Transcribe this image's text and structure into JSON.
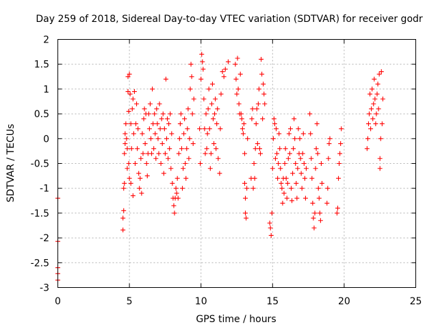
{
  "chart_data": {
    "type": "scatter",
    "title": "Day 259 of 2018, Sidereal Day-to-day VTEC variation (SDTVAR) for receiver godr",
    "xlabel": "GPS time / hours",
    "ylabel": "SDTVAR / TECUs",
    "xlim": [
      0,
      25
    ],
    "ylim": [
      -3,
      2
    ],
    "xticks": [
      0,
      5,
      10,
      15,
      20,
      25
    ],
    "yticks": [
      -3,
      -2.5,
      -2,
      -1.5,
      -1,
      -0.5,
      0,
      0.5,
      1,
      1.5,
      2
    ],
    "xtick_labels": [
      "0",
      "5",
      "10",
      "15",
      "20",
      "25"
    ],
    "ytick_labels": [
      "-3",
      "-2.5",
      "-2",
      "-1.5",
      "-1",
      "-0.5",
      "0",
      "0.5",
      "1",
      "1.5",
      "2"
    ],
    "grid": true,
    "marker": "plus",
    "series": [
      {
        "name": "SDTVAR",
        "color": "#ff0000",
        "points": [
          [
            0.0,
            -1.2
          ],
          [
            0.0,
            -2.07
          ],
          [
            0.0,
            -2.6
          ],
          [
            0.0,
            -2.72
          ],
          [
            0.0,
            -2.85
          ],
          [
            4.55,
            -1.84
          ],
          [
            4.55,
            -1.6
          ],
          [
            4.6,
            -1.45
          ],
          [
            4.6,
            -1.0
          ],
          [
            4.65,
            -0.9
          ],
          [
            4.65,
            -0.3
          ],
          [
            4.7,
            -0.1
          ],
          [
            4.7,
            0.1
          ],
          [
            4.75,
            0.3
          ],
          [
            4.8,
            0.0
          ],
          [
            4.85,
            -0.2
          ],
          [
            4.85,
            -0.6
          ],
          [
            4.9,
            1.25
          ],
          [
            4.9,
            0.95
          ],
          [
            4.95,
            0.55
          ],
          [
            4.95,
            -0.5
          ],
          [
            5.0,
            -0.8
          ],
          [
            5.0,
            1.3
          ],
          [
            5.05,
            0.9
          ],
          [
            5.1,
            0.3
          ],
          [
            5.1,
            -0.9
          ],
          [
            5.15,
            -0.2
          ],
          [
            5.2,
            0.6
          ],
          [
            5.25,
            0.8
          ],
          [
            5.25,
            -1.15
          ],
          [
            5.3,
            0.1
          ],
          [
            5.35,
            0.95
          ],
          [
            5.4,
            -0.5
          ],
          [
            5.45,
            0.3
          ],
          [
            5.5,
            0.7
          ],
          [
            5.55,
            -0.2
          ],
          [
            5.6,
            0.2
          ],
          [
            5.65,
            -0.7
          ],
          [
            5.7,
            -1.0
          ],
          [
            5.75,
            -0.8
          ],
          [
            5.8,
            -0.4
          ],
          [
            5.85,
            -1.1
          ],
          [
            5.9,
            0.1
          ],
          [
            5.95,
            -0.3
          ],
          [
            6.0,
            0.4
          ],
          [
            6.05,
            0.6
          ],
          [
            6.1,
            -0.1
          ],
          [
            6.15,
            0.5
          ],
          [
            6.2,
            -0.5
          ],
          [
            6.25,
            -0.75
          ],
          [
            6.3,
            -0.3
          ],
          [
            6.35,
            0.5
          ],
          [
            6.4,
            0.2
          ],
          [
            6.45,
            0.7
          ],
          [
            6.5,
            0.0
          ],
          [
            6.55,
            -0.3
          ],
          [
            6.6,
            1.0
          ],
          [
            6.65,
            0.3
          ],
          [
            6.7,
            -0.2
          ],
          [
            6.75,
            0.5
          ],
          [
            6.8,
            0.1
          ],
          [
            6.85,
            -0.4
          ],
          [
            6.9,
            0.6
          ],
          [
            6.95,
            0.3
          ],
          [
            7.0,
            0.0
          ],
          [
            7.05,
            -0.3
          ],
          [
            7.1,
            0.7
          ],
          [
            7.15,
            0.2
          ],
          [
            7.2,
            -0.5
          ],
          [
            7.25,
            0.4
          ],
          [
            7.3,
            -0.1
          ],
          [
            7.35,
            0.5
          ],
          [
            7.4,
            -0.7
          ],
          [
            7.45,
            0.2
          ],
          [
            7.5,
            -0.3
          ],
          [
            7.55,
            1.2
          ],
          [
            7.6,
            0.0
          ],
          [
            7.65,
            0.4
          ],
          [
            7.7,
            -0.4
          ],
          [
            7.75,
            0.3
          ],
          [
            7.8,
            -0.2
          ],
          [
            7.85,
            0.5
          ],
          [
            7.9,
            -0.6
          ],
          [
            7.95,
            0.1
          ],
          [
            8.0,
            -0.9
          ],
          [
            8.05,
            -1.2
          ],
          [
            8.1,
            -1.35
          ],
          [
            8.15,
            -1.5
          ],
          [
            8.2,
            -1.2
          ],
          [
            8.25,
            -1.0
          ],
          [
            8.3,
            -1.1
          ],
          [
            8.35,
            -0.8
          ],
          [
            8.4,
            -1.2
          ],
          [
            8.45,
            -0.3
          ],
          [
            8.5,
            0.0
          ],
          [
            8.55,
            0.3
          ],
          [
            8.6,
            0.5
          ],
          [
            8.65,
            -0.2
          ],
          [
            8.7,
            -1.0
          ],
          [
            8.75,
            -0.6
          ],
          [
            8.8,
            0.1
          ],
          [
            8.85,
            0.4
          ],
          [
            8.9,
            -0.5
          ],
          [
            8.95,
            -0.8
          ],
          [
            9.0,
            -0.2
          ],
          [
            9.05,
            0.2
          ],
          [
            9.1,
            0.6
          ],
          [
            9.15,
            -0.4
          ],
          [
            9.2,
            0.0
          ],
          [
            9.25,
            1.0
          ],
          [
            9.3,
            1.5
          ],
          [
            9.35,
            1.25
          ],
          [
            9.4,
            0.5
          ],
          [
            9.45,
            -0.1
          ],
          [
            9.5,
            0.8
          ],
          [
            9.9,
            0.2
          ],
          [
            9.95,
            -0.5
          ],
          [
            10.0,
            1.2
          ],
          [
            10.05,
            1.7
          ],
          [
            10.1,
            1.55
          ],
          [
            10.15,
            1.4
          ],
          [
            10.2,
            0.8
          ],
          [
            10.25,
            0.2
          ],
          [
            10.3,
            -0.3
          ],
          [
            10.35,
            0.5
          ],
          [
            10.4,
            -0.2
          ],
          [
            10.45,
            0.1
          ],
          [
            10.5,
            0.6
          ],
          [
            10.55,
            1.0
          ],
          [
            10.6,
            0.2
          ],
          [
            10.65,
            -0.6
          ],
          [
            10.7,
            -0.3
          ],
          [
            10.75,
            0.7
          ],
          [
            10.8,
            1.1
          ],
          [
            10.85,
            0.4
          ],
          [
            10.9,
            -0.1
          ],
          [
            10.95,
            0.5
          ],
          [
            11.0,
            0.8
          ],
          [
            11.05,
            -0.2
          ],
          [
            11.1,
            0.3
          ],
          [
            11.15,
            0.6
          ],
          [
            11.2,
            -0.4
          ],
          [
            11.3,
            -0.7
          ],
          [
            11.35,
            0.2
          ],
          [
            11.4,
            0.9
          ],
          [
            11.5,
            1.35
          ],
          [
            11.6,
            1.25
          ],
          [
            11.7,
            1.4
          ],
          [
            11.9,
            1.55
          ],
          [
            12.4,
            1.5
          ],
          [
            12.45,
            1.2
          ],
          [
            12.5,
            0.9
          ],
          [
            12.55,
            1.62
          ],
          [
            12.6,
            1.0
          ],
          [
            12.65,
            0.7
          ],
          [
            12.7,
            0.5
          ],
          [
            12.75,
            1.3
          ],
          [
            12.8,
            0.5
          ],
          [
            12.85,
            0.4
          ],
          [
            12.9,
            0.2
          ],
          [
            12.95,
            0.1
          ],
          [
            13.0,
            0.3
          ],
          [
            13.05,
            -0.3
          ],
          [
            13.05,
            -0.9
          ],
          [
            13.1,
            -1.2
          ],
          [
            13.1,
            -1.5
          ],
          [
            13.15,
            -1.6
          ],
          [
            13.2,
            -1.0
          ],
          [
            13.25,
            0.0
          ],
          [
            13.5,
            -0.8
          ],
          [
            13.55,
            0.4
          ],
          [
            13.6,
            0.6
          ],
          [
            13.65,
            -1.0
          ],
          [
            13.7,
            -0.5
          ],
          [
            13.75,
            -0.8
          ],
          [
            13.8,
            -0.2
          ],
          [
            13.85,
            0.3
          ],
          [
            13.9,
            0.6
          ],
          [
            13.95,
            -0.1
          ],
          [
            14.0,
            0.7
          ],
          [
            14.05,
            1.0
          ],
          [
            14.1,
            -0.2
          ],
          [
            14.15,
            -0.3
          ],
          [
            14.2,
            1.6
          ],
          [
            14.25,
            1.3
          ],
          [
            14.3,
            0.4
          ],
          [
            14.35,
            1.1
          ],
          [
            14.4,
            0.9
          ],
          [
            14.45,
            0.7
          ],
          [
            14.8,
            -1.7
          ],
          [
            14.85,
            -1.8
          ],
          [
            14.9,
            -1.95
          ],
          [
            14.95,
            -1.5
          ],
          [
            15.0,
            -0.6
          ],
          [
            15.05,
            0.0
          ],
          [
            15.1,
            0.4
          ],
          [
            15.15,
            0.3
          ],
          [
            15.2,
            -0.4
          ],
          [
            15.25,
            0.2
          ],
          [
            15.3,
            -0.3
          ],
          [
            15.35,
            -0.8
          ],
          [
            15.4,
            -0.5
          ],
          [
            15.45,
            0.1
          ],
          [
            15.5,
            -0.2
          ],
          [
            15.55,
            -0.6
          ],
          [
            15.6,
            -0.9
          ],
          [
            15.65,
            -1.0
          ],
          [
            15.7,
            -1.3
          ],
          [
            15.75,
            -0.8
          ],
          [
            15.8,
            -1.1
          ],
          [
            15.85,
            -0.5
          ],
          [
            15.9,
            -0.2
          ],
          [
            15.95,
            -0.8
          ],
          [
            16.0,
            -1.2
          ],
          [
            16.05,
            -0.9
          ],
          [
            16.1,
            -0.4
          ],
          [
            16.15,
            0.1
          ],
          [
            16.2,
            -0.3
          ],
          [
            16.25,
            0.2
          ],
          [
            16.3,
            -1.0
          ],
          [
            16.35,
            -1.25
          ],
          [
            16.4,
            -0.7
          ],
          [
            16.45,
            -0.2
          ],
          [
            16.5,
            0.4
          ],
          [
            16.55,
            0.0
          ],
          [
            16.6,
            -0.5
          ],
          [
            16.65,
            -0.9
          ],
          [
            16.7,
            -1.2
          ],
          [
            16.75,
            -0.6
          ],
          [
            16.8,
            0.2
          ],
          [
            16.85,
            -0.3
          ],
          [
            16.9,
            0.0
          ],
          [
            16.95,
            -0.4
          ],
          [
            17.0,
            -0.7
          ],
          [
            17.05,
            -1.0
          ],
          [
            17.1,
            -0.3
          ],
          [
            17.15,
            0.1
          ],
          [
            17.2,
            -0.5
          ],
          [
            17.25,
            -0.8
          ],
          [
            17.3,
            -1.2
          ],
          [
            17.35,
            -0.6
          ],
          [
            17.6,
            0.5
          ],
          [
            17.65,
            0.1
          ],
          [
            17.7,
            -0.4
          ],
          [
            17.75,
            -0.8
          ],
          [
            17.8,
            -1.3
          ],
          [
            17.85,
            -1.6
          ],
          [
            17.9,
            -1.8
          ],
          [
            17.95,
            -1.5
          ],
          [
            18.0,
            -0.6
          ],
          [
            18.05,
            -0.2
          ],
          [
            18.1,
            0.3
          ],
          [
            18.15,
            -0.3
          ],
          [
            18.2,
            -1.0
          ],
          [
            18.25,
            -1.2
          ],
          [
            18.3,
            -1.5
          ],
          [
            18.35,
            -1.65
          ],
          [
            18.4,
            -0.5
          ],
          [
            18.45,
            -0.9
          ],
          [
            18.8,
            -1.3
          ],
          [
            18.85,
            -1.0
          ],
          [
            18.9,
            -0.4
          ],
          [
            18.95,
            -0.1
          ],
          [
            19.0,
            0.0
          ],
          [
            19.5,
            -1.5
          ],
          [
            19.55,
            -1.4
          ],
          [
            19.6,
            -0.8
          ],
          [
            19.65,
            -0.5
          ],
          [
            19.7,
            -0.3
          ],
          [
            19.75,
            -0.1
          ],
          [
            19.8,
            0.2
          ],
          [
            21.6,
            -0.2
          ],
          [
            21.65,
            0.0
          ],
          [
            21.7,
            0.3
          ],
          [
            21.75,
            0.5
          ],
          [
            21.8,
            0.9
          ],
          [
            21.85,
            0.2
          ],
          [
            21.9,
            0.6
          ],
          [
            21.95,
            1.0
          ],
          [
            22.0,
            0.4
          ],
          [
            22.05,
            0.7
          ],
          [
            22.1,
            1.2
          ],
          [
            22.15,
            0.8
          ],
          [
            22.2,
            0.3
          ],
          [
            22.25,
            0.5
          ],
          [
            22.3,
            0.9
          ],
          [
            22.35,
            1.1
          ],
          [
            22.4,
            0.6
          ],
          [
            22.45,
            1.3
          ],
          [
            22.5,
            -0.4
          ],
          [
            22.5,
            -0.6
          ],
          [
            22.55,
            0.0
          ],
          [
            22.6,
            1.35
          ],
          [
            22.65,
            0.3
          ],
          [
            22.7,
            0.8
          ]
        ]
      }
    ]
  }
}
